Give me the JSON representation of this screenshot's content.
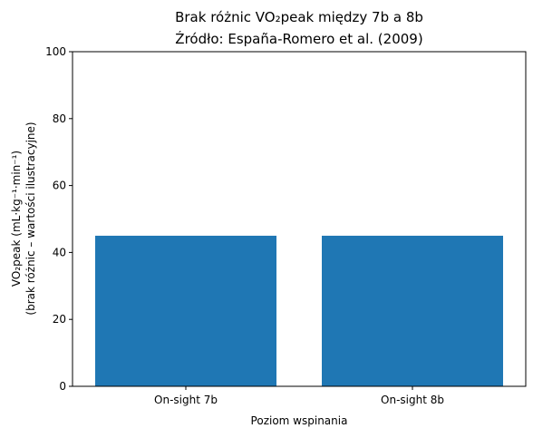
{
  "chart_data": {
    "type": "bar",
    "title": "Brak różnic VO₂peak między 7b a 8b",
    "subtitle": "Źródło: España-Romero et al. (2009)",
    "xlabel": "Poziom wspinania",
    "ylabel": "VO₂peak (mL·kg⁻¹·min⁻¹)",
    "ylabel2": "(brak różnic – wartości ilustracyjne)",
    "categories": [
      "On-sight 7b",
      "On-sight 8b"
    ],
    "values": [
      45,
      45
    ],
    "ylim": [
      0,
      100
    ],
    "yticks": [
      0,
      20,
      40,
      60,
      80,
      100
    ],
    "bar_color": "#1f77b4",
    "grid": false,
    "legend": "none"
  }
}
